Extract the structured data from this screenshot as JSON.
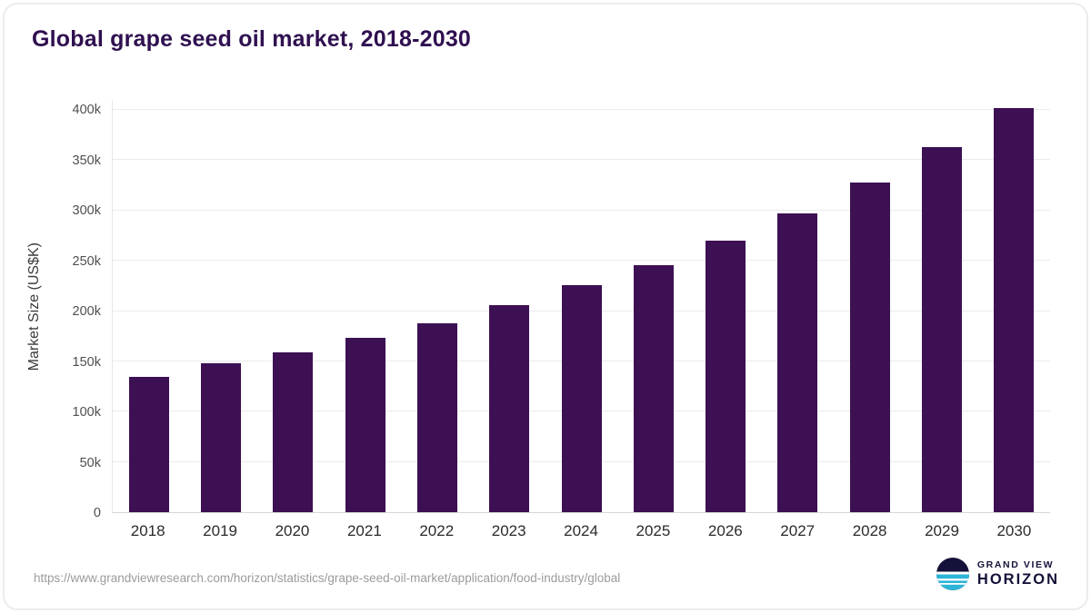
{
  "title": "Global grape seed oil market, 2018-2030",
  "chart_data": {
    "type": "bar",
    "title": "Global grape seed oil market, 2018-2030",
    "categories": [
      "2018",
      "2019",
      "2020",
      "2021",
      "2022",
      "2023",
      "2024",
      "2025",
      "2026",
      "2027",
      "2028",
      "2029",
      "2030"
    ],
    "values": [
      135000,
      148000,
      159000,
      173000,
      188000,
      206000,
      226000,
      246000,
      270000,
      297000,
      328000,
      363000,
      402000
    ],
    "xlabel": "",
    "ylabel": "Market Size (US$K)",
    "ylim": [
      0,
      410000
    ],
    "yticks": [
      {
        "value": 0,
        "label": "0"
      },
      {
        "value": 50000,
        "label": "50k"
      },
      {
        "value": 100000,
        "label": "100k"
      },
      {
        "value": 150000,
        "label": "150k"
      },
      {
        "value": 200000,
        "label": "200k"
      },
      {
        "value": 250000,
        "label": "250k"
      },
      {
        "value": 300000,
        "label": "300k"
      },
      {
        "value": 350000,
        "label": "350k"
      },
      {
        "value": 400000,
        "label": "400k"
      }
    ],
    "grid": true,
    "legend": false,
    "bar_color": "#3c1053"
  },
  "footer": {
    "source_url": "https://www.grandviewresearch.com/horizon/statistics/grape-seed-oil-market/application/food-industry/global"
  },
  "logo": {
    "line1": "GRAND VIEW",
    "line2": "HORIZON"
  },
  "colors": {
    "title": "#2f1050",
    "bar": "#3c1053",
    "gridline": "#ebebeb",
    "logo_navy": "#14123a",
    "logo_teal": "#2cb5d8"
  }
}
